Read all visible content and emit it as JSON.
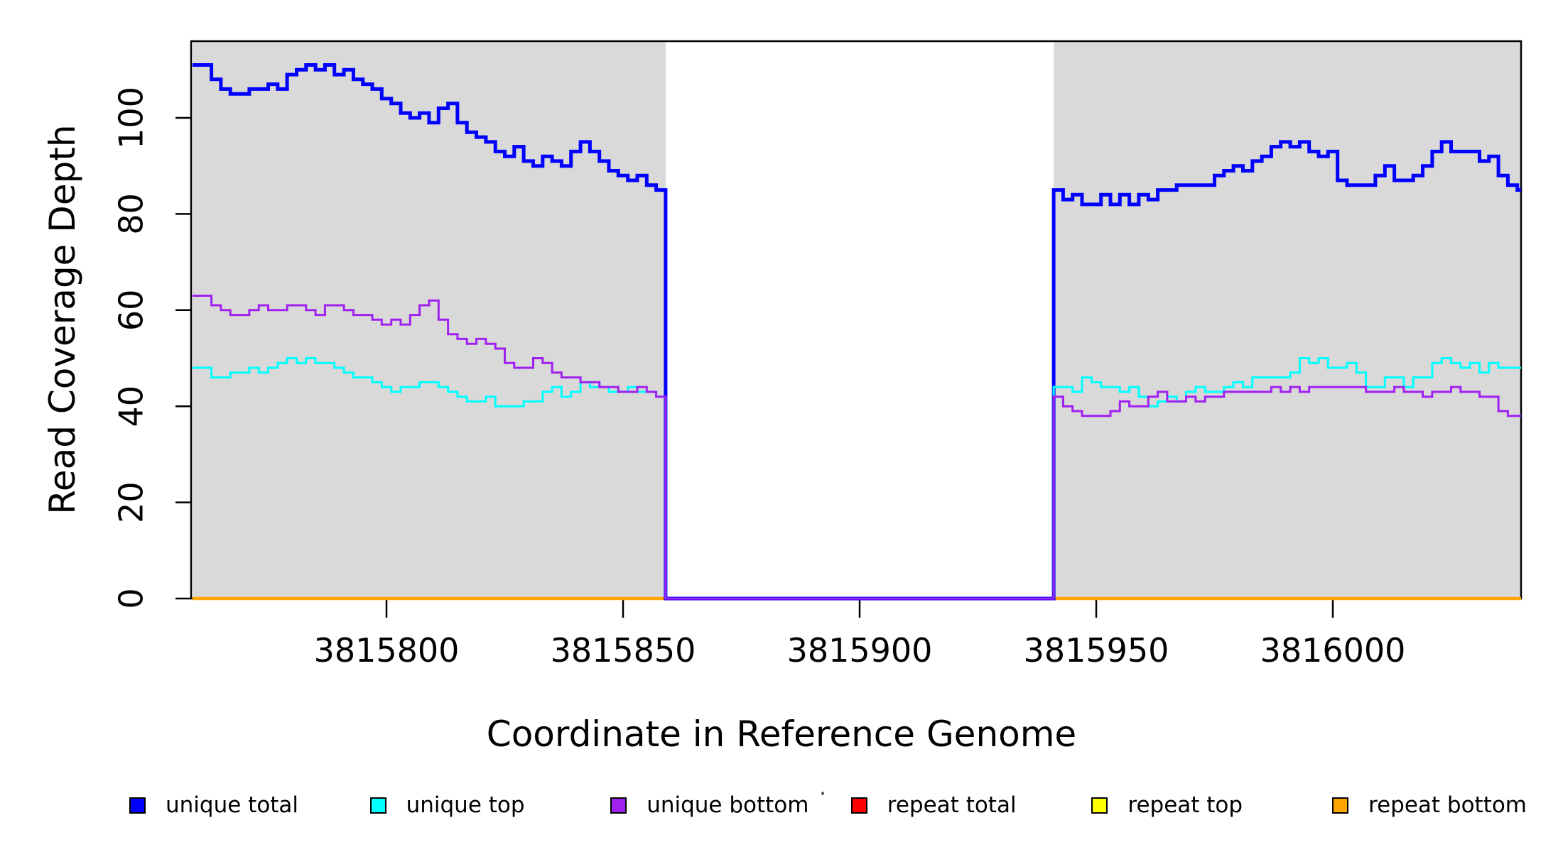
{
  "y_axis": {
    "label": "Read Coverage Depth",
    "ticks": [
      0,
      20,
      40,
      60,
      80,
      100
    ]
  },
  "x_axis": {
    "label": "Coordinate in Reference Genome",
    "ticks": [
      3815800,
      3815850,
      3815900,
      3815950,
      3816000
    ]
  },
  "legend": [
    {
      "label": "unique total",
      "color": "#0000ff"
    },
    {
      "label": "unique top",
      "color": "#00ffff"
    },
    {
      "label": "unique bottom",
      "color": "#a020f0"
    },
    {
      "label": "repeat total",
      "color": "#ff0000"
    },
    {
      "label": "repeat top",
      "color": "#ffff00"
    },
    {
      "label": "repeat bottom",
      "color": "#ffa500"
    }
  ],
  "chart_data": {
    "type": "line",
    "style": "step",
    "title": "",
    "xlabel": "Coordinate in Reference Genome",
    "ylabel": "Read Coverage Depth",
    "xlim": [
      3815759,
      3816040
    ],
    "ylim": [
      0,
      116
    ],
    "grid": false,
    "legend_position": "bottom",
    "shading": {
      "color": "#d9d9d9",
      "regions": [
        [
          3815759,
          3815859
        ],
        [
          3815941,
          3816040
        ]
      ],
      "note": "gray rectangles mark unique-coverage regions; white middle band is zero-coverage gap"
    },
    "gap_region": [
      3815859,
      3815941
    ],
    "x_step": 2,
    "series": [
      {
        "name": "repeat total",
        "color": "#ff0000",
        "width": 3,
        "constant": 0,
        "x_range": [
          3815759,
          3816040
        ]
      },
      {
        "name": "repeat top",
        "color": "#ffff00",
        "width": 3,
        "constant": 0,
        "x_range": [
          3815759,
          3816040
        ]
      },
      {
        "name": "repeat bottom",
        "color": "#ffa500",
        "width": 4.5,
        "constant": 0,
        "x_range": [
          3815759,
          3816040
        ]
      },
      {
        "name": "unique total",
        "color": "#0000ff",
        "width": 5,
        "zero_in_gap": true,
        "segments": [
          {
            "x_start": 3815759,
            "values": [
              111,
              111,
              108,
              106,
              105,
              105,
              106,
              106,
              107,
              106,
              109,
              110,
              111,
              110,
              111,
              109,
              110,
              108,
              107,
              106,
              104,
              103,
              101,
              100,
              101,
              99,
              102,
              103,
              99,
              97,
              96,
              95,
              93,
              92,
              94,
              91,
              90,
              92,
              91,
              90,
              93,
              95,
              93,
              91,
              89,
              88,
              87,
              88,
              86,
              85
            ]
          },
          {
            "x_start": 3815941,
            "values": [
              85,
              83,
              84,
              82,
              82,
              84,
              82,
              84,
              82,
              84,
              83,
              85,
              85,
              86,
              86,
              86,
              86,
              88,
              89,
              90,
              89,
              91,
              92,
              94,
              95,
              94,
              95,
              93,
              92,
              93,
              87,
              86,
              86,
              86,
              88,
              90,
              87,
              87,
              88,
              90,
              93,
              95,
              93,
              93,
              93,
              91,
              92,
              88,
              86,
              85
            ]
          }
        ]
      },
      {
        "name": "unique top",
        "color": "#00ffff",
        "width": 3,
        "zero_in_gap": true,
        "segments": [
          {
            "x_start": 3815759,
            "values": [
              48,
              48,
              46,
              46,
              47,
              47,
              48,
              47,
              48,
              49,
              50,
              49,
              50,
              49,
              49,
              48,
              47,
              46,
              46,
              45,
              44,
              43,
              44,
              44,
              45,
              45,
              44,
              43,
              42,
              41,
              41,
              42,
              40,
              40,
              40,
              41,
              41,
              43,
              44,
              42,
              43,
              45,
              44,
              44,
              43,
              43,
              44,
              43,
              43,
              42
            ]
          },
          {
            "x_start": 3815941,
            "values": [
              44,
              44,
              43,
              46,
              45,
              44,
              44,
              43,
              44,
              42,
              40,
              41,
              42,
              41,
              43,
              44,
              43,
              43,
              44,
              45,
              44,
              46,
              46,
              46,
              46,
              47,
              50,
              49,
              50,
              48,
              48,
              49,
              47,
              44,
              44,
              46,
              46,
              44,
              46,
              46,
              49,
              50,
              49,
              48,
              49,
              47,
              49,
              48,
              48,
              48
            ]
          }
        ]
      },
      {
        "name": "unique bottom",
        "color": "#a020f0",
        "width": 3,
        "zero_in_gap": true,
        "segments": [
          {
            "x_start": 3815759,
            "values": [
              63,
              63,
              61,
              60,
              59,
              59,
              60,
              61,
              60,
              60,
              61,
              61,
              60,
              59,
              61,
              61,
              60,
              59,
              59,
              58,
              57,
              58,
              57,
              59,
              61,
              62,
              58,
              55,
              54,
              53,
              54,
              53,
              52,
              49,
              48,
              48,
              50,
              49,
              47,
              46,
              46,
              45,
              45,
              44,
              44,
              43,
              43,
              44,
              43,
              42
            ]
          },
          {
            "x_start": 3815941,
            "values": [
              42,
              40,
              39,
              38,
              38,
              38,
              39,
              41,
              40,
              40,
              42,
              43,
              41,
              41,
              42,
              41,
              42,
              42,
              43,
              43,
              43,
              43,
              43,
              44,
              43,
              44,
              43,
              44,
              44,
              44,
              44,
              44,
              44,
              43,
              43,
              43,
              44,
              43,
              43,
              42,
              43,
              43,
              44,
              43,
              43,
              42,
              42,
              39,
              38,
              38
            ]
          }
        ]
      }
    ]
  }
}
